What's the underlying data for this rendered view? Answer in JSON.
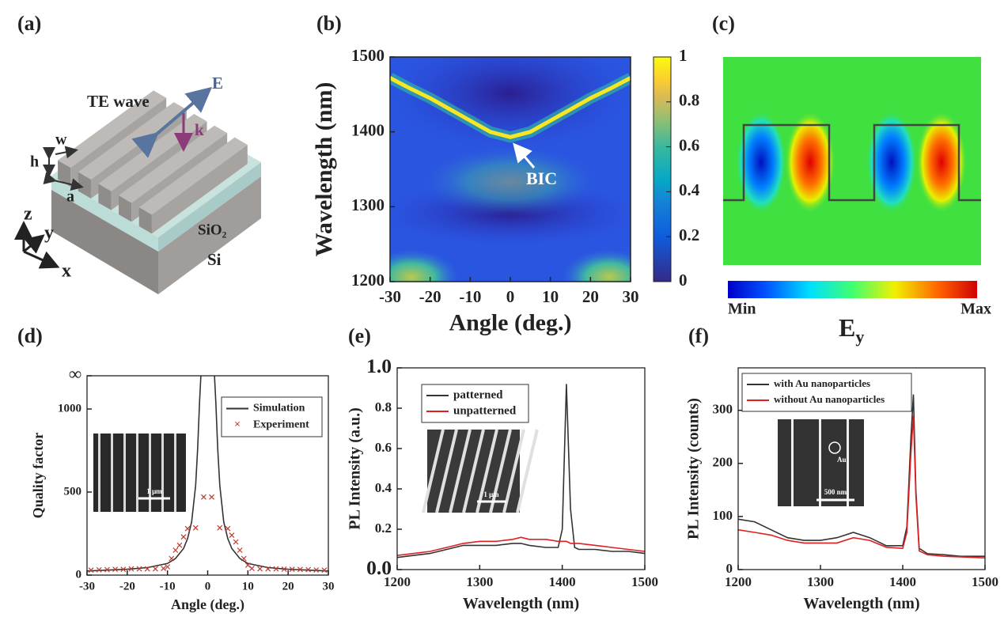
{
  "panel_labels": [
    "(a)",
    "(b)",
    "(c)",
    "(d)",
    "(e)",
    "(f)"
  ],
  "diagram_a": {
    "wave": "TE wave",
    "field": "E",
    "wavevector": "k",
    "width": "w",
    "height": "h",
    "period": "a",
    "layer": "SiO₂",
    "substrate": "Si",
    "axis_z": "z",
    "axis_y": "y",
    "axis_x": "x"
  },
  "diagram_c": {
    "colorbar_min": "Min",
    "colorbar_max": "Max",
    "quantity": "E",
    "quantity_subscript": "y"
  },
  "insets": {
    "d_scale": "1 μm",
    "e_scale": "1 μm",
    "f_scale": "500 nm",
    "f_marker": "Au"
  },
  "chart_data": [
    {
      "type": "heatmap",
      "xlabel": "Angle (deg.)",
      "ylabel": "Wavelength (nm)",
      "xlim": [
        -30,
        30
      ],
      "xticks": [
        -30,
        -20,
        -10,
        0,
        10,
        20,
        30
      ],
      "ylim": [
        1200,
        1500
      ],
      "yticks": [
        1200,
        1300,
        1400,
        1500
      ],
      "colorbar": {
        "lim": [
          0,
          1
        ],
        "ticks": [
          0,
          0.2,
          0.4,
          0.6,
          0.8,
          1
        ]
      },
      "annotation": "BIC",
      "series": [
        {
          "color": "#f5e626",
          "x": [
            -30,
            -25,
            -20,
            -15,
            -10,
            -5,
            0,
            5,
            10,
            15,
            20,
            25,
            30
          ],
          "values": [
            1472,
            1458,
            1445,
            1430,
            1415,
            1400,
            1393,
            1400,
            1415,
            1430,
            1445,
            1458,
            1472
          ]
        }
      ]
    },
    {
      "type": "line",
      "xlabel": "Angle (deg.)",
      "ylabel": "Quality factor",
      "xlim": [
        -30,
        30
      ],
      "xticks": [
        -30,
        -20,
        -10,
        0,
        10,
        20,
        30
      ],
      "ylim": [
        0,
        1200
      ],
      "yticks": [
        0,
        500,
        1000,
        {
          "value": 1200,
          "label": "∞"
        }
      ],
      "series": [
        {
          "name": "Simulation",
          "kind": "line",
          "color": "#333333",
          "x": [
            -30,
            -25,
            -20,
            -15,
            -10,
            -8,
            -6,
            -5,
            -4,
            -3,
            -2.5,
            -2,
            -1.7,
            null,
            1.7,
            2,
            2.5,
            3,
            4,
            5,
            6,
            8,
            10,
            15,
            20,
            25,
            30
          ],
          "values": [
            25,
            30,
            35,
            45,
            70,
            100,
            160,
            220,
            320,
            540,
            760,
            1050,
            1200,
            null,
            1200,
            1050,
            760,
            540,
            320,
            220,
            160,
            100,
            70,
            45,
            35,
            30,
            25
          ]
        },
        {
          "name": "Experiment",
          "kind": "scatter",
          "color": "#c0392b",
          "x": [
            -29,
            -27,
            -25,
            -23,
            -21,
            -19,
            -17,
            -15,
            -13,
            -11,
            -10,
            -9,
            -8,
            -7,
            -6,
            -5,
            -3,
            -1,
            1,
            3,
            5,
            6,
            7,
            8,
            9,
            10,
            11,
            13,
            15,
            17,
            19,
            21,
            23,
            25,
            27,
            29
          ],
          "values": [
            30,
            32,
            33,
            35,
            35,
            38,
            38,
            38,
            38,
            40,
            50,
            100,
            150,
            180,
            230,
            280,
            285,
            470,
            470,
            285,
            280,
            240,
            200,
            150,
            100,
            60,
            40,
            38,
            38,
            38,
            36,
            35,
            34,
            33,
            31,
            30
          ]
        }
      ]
    },
    {
      "type": "line",
      "xlabel": "Wavelength (nm)",
      "ylabel": "PL Intensity (a.u.)",
      "xlim": [
        1200,
        1500
      ],
      "xticks": [
        1200,
        1300,
        1400,
        1500
      ],
      "ylim": [
        0,
        1
      ],
      "yticks": [
        {
          "value": 0,
          "label": "0.0"
        },
        0.2,
        0.4,
        0.6,
        0.8,
        {
          "value": 1,
          "label": "1.0"
        }
      ],
      "series": [
        {
          "name": "patterned",
          "kind": "line",
          "color": "#333333",
          "x": [
            1200,
            1220,
            1240,
            1260,
            1280,
            1300,
            1320,
            1340,
            1350,
            1360,
            1380,
            1395,
            1400,
            1405,
            1410,
            1415,
            1420,
            1440,
            1460,
            1480,
            1500
          ],
          "values": [
            0.06,
            0.07,
            0.08,
            0.1,
            0.12,
            0.12,
            0.12,
            0.13,
            0.13,
            0.12,
            0.11,
            0.11,
            0.2,
            0.92,
            0.3,
            0.11,
            0.1,
            0.1,
            0.09,
            0.09,
            0.08
          ]
        },
        {
          "name": "unpatterned",
          "kind": "line",
          "color": "#e02020",
          "x": [
            1200,
            1220,
            1240,
            1260,
            1280,
            1300,
            1320,
            1340,
            1350,
            1360,
            1380,
            1395,
            1400,
            1405,
            1410,
            1415,
            1420,
            1440,
            1460,
            1480,
            1500
          ],
          "values": [
            0.07,
            0.08,
            0.09,
            0.11,
            0.13,
            0.14,
            0.14,
            0.15,
            0.16,
            0.15,
            0.15,
            0.14,
            0.14,
            0.14,
            0.13,
            0.13,
            0.13,
            0.12,
            0.11,
            0.1,
            0.09
          ]
        }
      ]
    },
    {
      "type": "line",
      "xlabel": "Wavelength (nm)",
      "ylabel": "PL Intensity (counts)",
      "xlim": [
        1200,
        1500
      ],
      "xticks": [
        1200,
        1300,
        1400,
        1500
      ],
      "ylim": [
        0,
        380
      ],
      "yticks": [
        0,
        100,
        200,
        300
      ],
      "series": [
        {
          "name": "with Au nanoparticles",
          "kind": "line",
          "color": "#333333",
          "x": [
            1200,
            1220,
            1240,
            1260,
            1280,
            1300,
            1320,
            1340,
            1360,
            1380,
            1400,
            1405,
            1410,
            1413,
            1416,
            1420,
            1430,
            1450,
            1470,
            1500
          ],
          "values": [
            95,
            90,
            75,
            60,
            55,
            55,
            60,
            70,
            60,
            45,
            45,
            80,
            250,
            330,
            150,
            40,
            30,
            28,
            25,
            25
          ]
        },
        {
          "name": "without Au nanoparticles",
          "kind": "line",
          "color": "#e02020",
          "x": [
            1200,
            1220,
            1240,
            1260,
            1280,
            1300,
            1320,
            1340,
            1360,
            1380,
            1400,
            1405,
            1410,
            1413,
            1416,
            1420,
            1430,
            1450,
            1470,
            1500
          ],
          "values": [
            75,
            70,
            65,
            55,
            50,
            50,
            50,
            60,
            55,
            42,
            40,
            70,
            220,
            290,
            140,
            35,
            28,
            25,
            24,
            22
          ]
        }
      ]
    }
  ]
}
